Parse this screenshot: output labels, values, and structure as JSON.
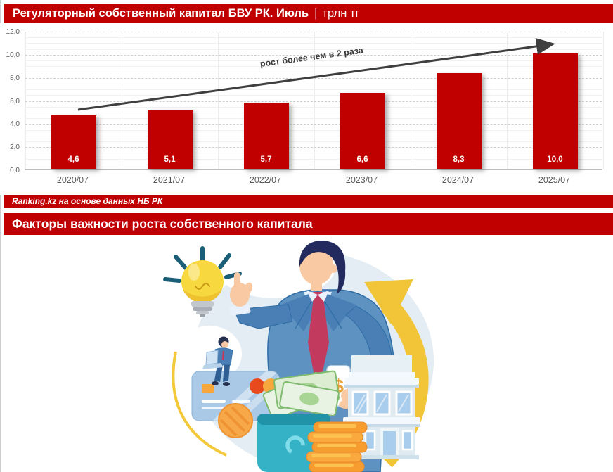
{
  "page": {
    "background": "#ffffff",
    "accent": "#c00000"
  },
  "header": {
    "title": "Регуляторный собственный капитал БВУ РК. Июль",
    "separator": "|",
    "unit": "трлн тг"
  },
  "chart_data": {
    "type": "bar",
    "title": "Регуляторный собственный капитал БВУ РК. Июль, трлн тг",
    "categories": [
      "2020/07",
      "2021/07",
      "2022/07",
      "2023/07",
      "2024/07",
      "2025/07"
    ],
    "values": [
      4.6,
      5.1,
      5.7,
      6.6,
      8.3,
      10.0
    ],
    "value_labels": [
      "4,6",
      "5,1",
      "5,7",
      "6,6",
      "8,3",
      "10,0"
    ],
    "ylim": [
      0,
      12
    ],
    "y_tick_values": [
      0,
      2,
      4,
      6,
      8,
      10,
      12
    ],
    "y_tick_labels": [
      "0,0",
      "2,0",
      "4,0",
      "6,0",
      "8,0",
      "10,0",
      "12,0"
    ],
    "xlabel": "",
    "ylabel": "",
    "grid": true,
    "legend": false,
    "bar_color": "#c00000",
    "annotation": "рост более чем в 2 раза"
  },
  "source_bar": {
    "text": "Ranking.kz на основе данных НБ РК"
  },
  "section2": {
    "title": "Факторы важности роста собственного капитала"
  },
  "illustration": {
    "dollar_sign": "$"
  }
}
